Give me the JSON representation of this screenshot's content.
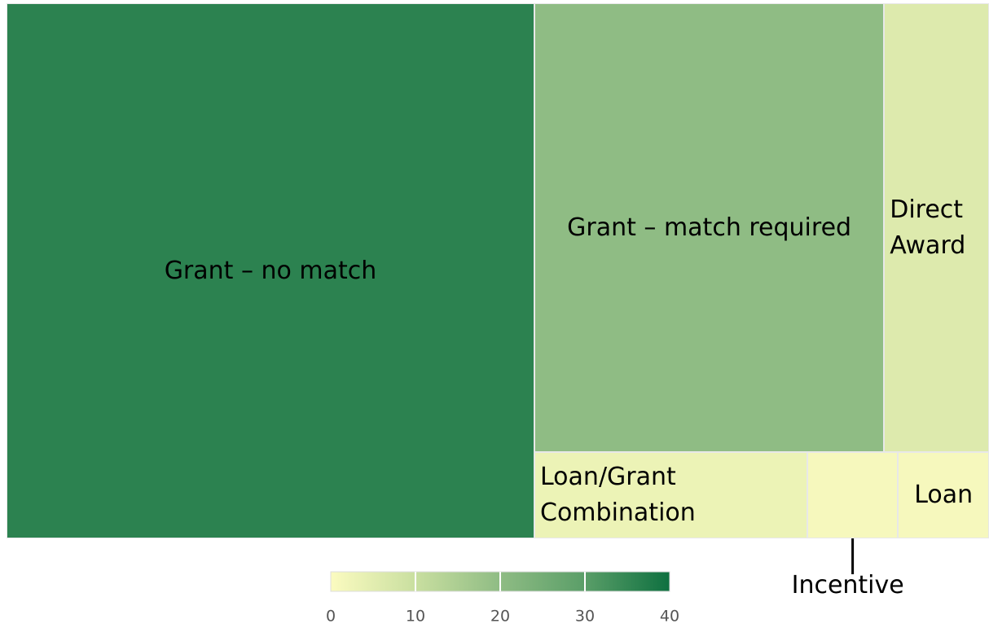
{
  "chart_data": {
    "type": "treemap",
    "categories": [
      "Grant – no match",
      "Grant – match required",
      "Direct Award",
      "Loan/Grant Combination",
      "Incentive",
      "Loan"
    ],
    "values": [
      36,
      20,
      6,
      3,
      1,
      1
    ],
    "colorscale": [
      [
        0,
        "#fbfbc0"
      ],
      [
        10,
        "#c9dfa0"
      ],
      [
        20,
        "#8fbc84"
      ],
      [
        30,
        "#5a9e68"
      ],
      [
        40,
        "#0e7040"
      ]
    ],
    "clim": [
      0,
      40
    ],
    "cticks": [
      0,
      10,
      20,
      30,
      40
    ]
  }
}
